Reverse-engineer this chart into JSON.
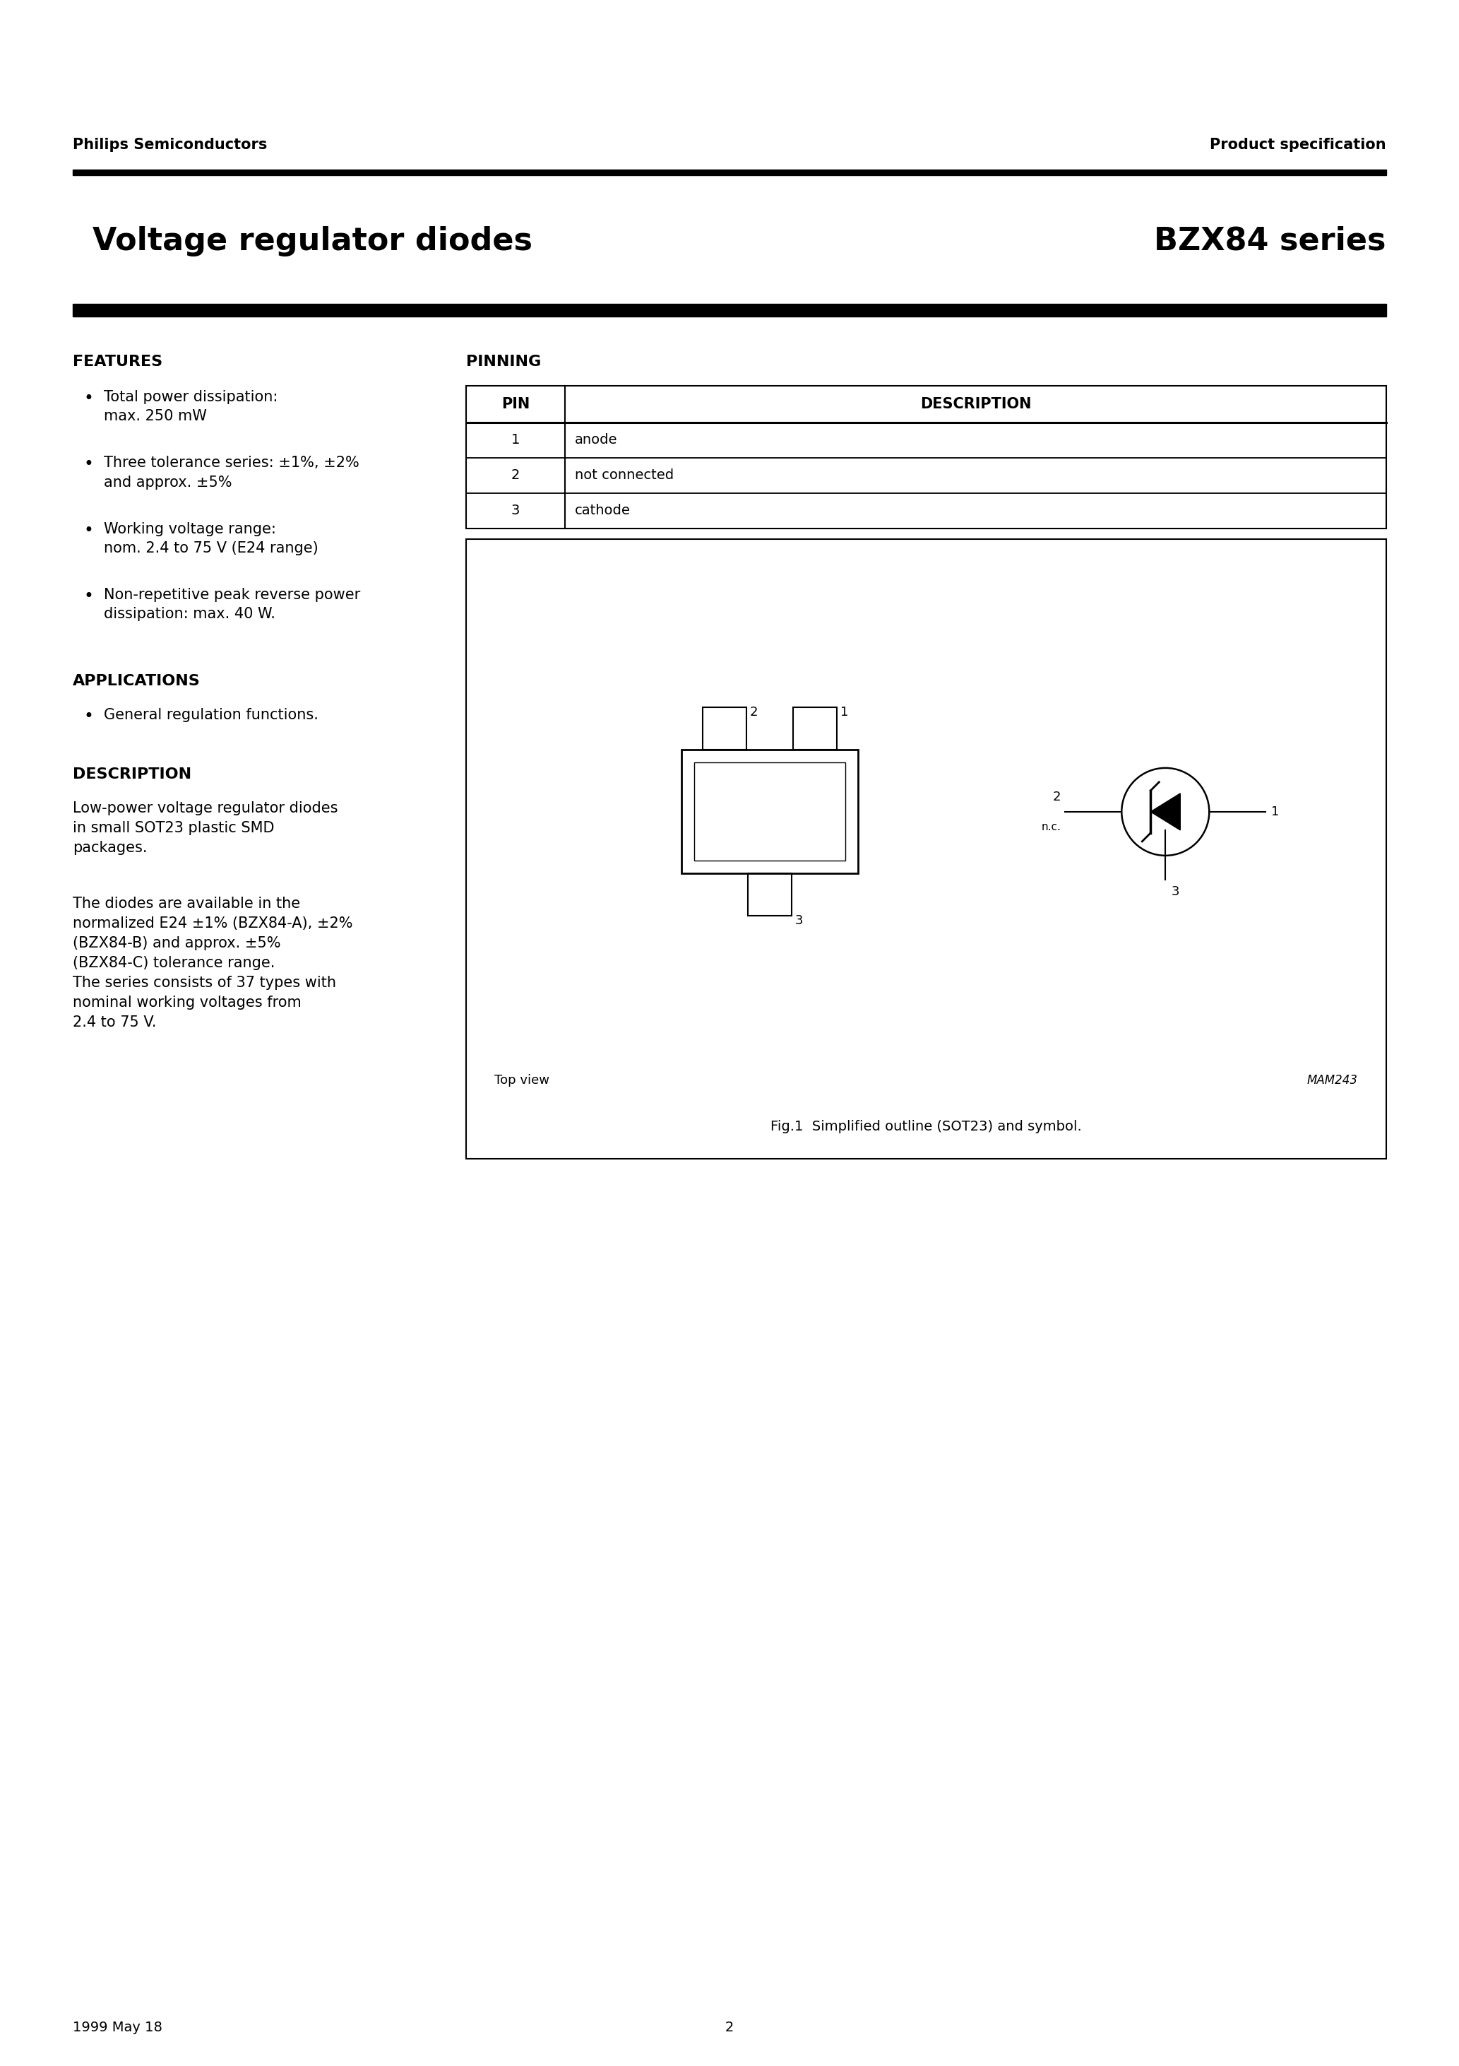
{
  "page_title_left": "Voltage regulator diodes",
  "page_title_right": "BZX84 series",
  "header_left": "Philips Semiconductors",
  "header_right": "Product specification",
  "features_title": "FEATURES",
  "features_items": [
    "Total power dissipation:\nmax. 250 mW",
    "Three tolerance series: ±1%, ±2%\nand approx. ±5%",
    "Working voltage range:\nnom. 2.4 to 75 V (E24 range)",
    "Non-repetitive peak reverse power\ndissipation: max. 40 W."
  ],
  "applications_title": "APPLICATIONS",
  "applications_items": [
    "General regulation functions."
  ],
  "description_title": "DESCRIPTION",
  "description_text1": "Low-power voltage regulator diodes\nin small SOT23 plastic SMD\npackages.",
  "description_text2": "The diodes are available in the\nnormalized E24 ±1% (BZX84-A), ±2%\n(BZX84-B) and approx. ±5%\n(BZX84-C) tolerance range.\nThe series consists of 37 types with\nnominal working voltages from\n2.4 to 75 V.",
  "pinning_title": "PINNING",
  "pin_headers": [
    "PIN",
    "DESCRIPTION"
  ],
  "pin_rows": [
    [
      "1",
      "anode"
    ],
    [
      "2",
      "not connected"
    ],
    [
      "3",
      "cathode"
    ]
  ],
  "fig_caption": "Fig.1  Simplified outline (SOT23) and symbol.",
  "top_view_label": "Top view",
  "mam_label": "MAM243",
  "footer_left": "1999 May 18",
  "footer_center": "2",
  "bg_color": "#ffffff",
  "text_color": "#000000",
  "bar_color": "#000000"
}
